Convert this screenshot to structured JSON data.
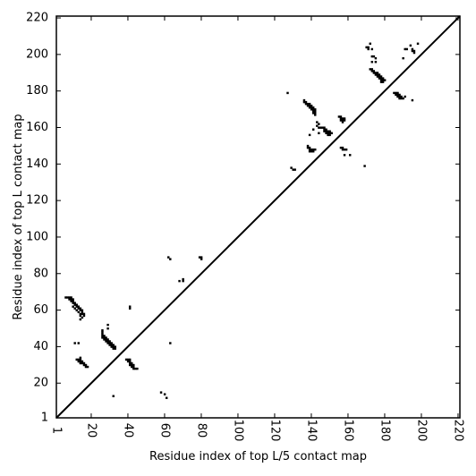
{
  "chart_data": {
    "type": "scatter",
    "title": "",
    "xlabel": "Residue index of top L/5 contact map",
    "ylabel": "Residue index of top L contact map",
    "xlim": [
      1,
      221
    ],
    "ylim": [
      1,
      221
    ],
    "x_ticks": [
      1,
      20,
      40,
      60,
      80,
      100,
      120,
      140,
      160,
      180,
      200,
      220
    ],
    "y_ticks": [
      1,
      20,
      40,
      60,
      80,
      100,
      120,
      140,
      160,
      180,
      200,
      220
    ],
    "x_tick_labels": [
      "1",
      "20",
      "40",
      "60",
      "80",
      "100",
      "120",
      "140",
      "160",
      "180",
      "200",
      "220"
    ],
    "y_tick_labels": [
      "1",
      "20",
      "40",
      "60",
      "80",
      "100",
      "120",
      "140",
      "160",
      "180",
      "200",
      "220"
    ],
    "grid": false,
    "diagonal": {
      "from": [
        1,
        1
      ],
      "to": [
        221,
        221
      ]
    },
    "points": [
      [
        6,
        67
      ],
      [
        7,
        67
      ],
      [
        8,
        67
      ],
      [
        8,
        66
      ],
      [
        9,
        66
      ],
      [
        9,
        65
      ],
      [
        10,
        65
      ],
      [
        10,
        66
      ],
      [
        10,
        64
      ],
      [
        11,
        64
      ],
      [
        11,
        63
      ],
      [
        12,
        63
      ],
      [
        12,
        62
      ],
      [
        13,
        62
      ],
      [
        13,
        61
      ],
      [
        14,
        61
      ],
      [
        14,
        60
      ],
      [
        15,
        60
      ],
      [
        15,
        59
      ],
      [
        15,
        58
      ],
      [
        16,
        58
      ],
      [
        16,
        57
      ],
      [
        15,
        56
      ],
      [
        14,
        57
      ],
      [
        14,
        55
      ],
      [
        9,
        67
      ],
      [
        10,
        62
      ],
      [
        11,
        61
      ],
      [
        12,
        60
      ],
      [
        13,
        59
      ],
      [
        14,
        58
      ],
      [
        11,
        42
      ],
      [
        13,
        42
      ],
      [
        12,
        33
      ],
      [
        13,
        33
      ],
      [
        13,
        32
      ],
      [
        14,
        33
      ],
      [
        14,
        32
      ],
      [
        14,
        31
      ],
      [
        15,
        32
      ],
      [
        15,
        31
      ],
      [
        16,
        31
      ],
      [
        16,
        30
      ],
      [
        17,
        30
      ],
      [
        17,
        29
      ],
      [
        18,
        29
      ],
      [
        14,
        34
      ],
      [
        32,
        13
      ],
      [
        26,
        48
      ],
      [
        26,
        47
      ],
      [
        26,
        46
      ],
      [
        26,
        45
      ],
      [
        27,
        46
      ],
      [
        27,
        45
      ],
      [
        27,
        44
      ],
      [
        28,
        45
      ],
      [
        28,
        44
      ],
      [
        28,
        43
      ],
      [
        29,
        44
      ],
      [
        29,
        43
      ],
      [
        29,
        42
      ],
      [
        30,
        43
      ],
      [
        30,
        42
      ],
      [
        30,
        41
      ],
      [
        31,
        42
      ],
      [
        31,
        41
      ],
      [
        31,
        40
      ],
      [
        32,
        41
      ],
      [
        32,
        40
      ],
      [
        32,
        39
      ],
      [
        33,
        40
      ],
      [
        33,
        39
      ],
      [
        29,
        52
      ],
      [
        29,
        50
      ],
      [
        26,
        49
      ],
      [
        39,
        33
      ],
      [
        40,
        33
      ],
      [
        40,
        32
      ],
      [
        41,
        32
      ],
      [
        41,
        31
      ],
      [
        41,
        30
      ],
      [
        42,
        31
      ],
      [
        42,
        30
      ],
      [
        42,
        29
      ],
      [
        43,
        30
      ],
      [
        43,
        29
      ],
      [
        43,
        28
      ],
      [
        44,
        28
      ],
      [
        45,
        28
      ],
      [
        41,
        33
      ],
      [
        41,
        62
      ],
      [
        41,
        61
      ],
      [
        58,
        15
      ],
      [
        60,
        14
      ],
      [
        61,
        12
      ],
      [
        62,
        89
      ],
      [
        63,
        88
      ],
      [
        63,
        42
      ],
      [
        68,
        76
      ],
      [
        70,
        76
      ],
      [
        70,
        77
      ],
      [
        79,
        89
      ],
      [
        80,
        89
      ],
      [
        80,
        88
      ],
      [
        127,
        179
      ],
      [
        129,
        138
      ],
      [
        130,
        137
      ],
      [
        131,
        137
      ],
      [
        136,
        175
      ],
      [
        136,
        174
      ],
      [
        137,
        174
      ],
      [
        137,
        173
      ],
      [
        138,
        173
      ],
      [
        138,
        172
      ],
      [
        139,
        173
      ],
      [
        139,
        172
      ],
      [
        139,
        171
      ],
      [
        140,
        172
      ],
      [
        140,
        171
      ],
      [
        140,
        170
      ],
      [
        141,
        171
      ],
      [
        141,
        170
      ],
      [
        141,
        169
      ],
      [
        141,
        168
      ],
      [
        142,
        170
      ],
      [
        142,
        169
      ],
      [
        142,
        168
      ],
      [
        142,
        167
      ],
      [
        138,
        150
      ],
      [
        138,
        149
      ],
      [
        139,
        149
      ],
      [
        139,
        148
      ],
      [
        140,
        148
      ],
      [
        140,
        147
      ],
      [
        141,
        148
      ],
      [
        141,
        147
      ],
      [
        142,
        148
      ],
      [
        139,
        147
      ],
      [
        143,
        163
      ],
      [
        143,
        161
      ],
      [
        144,
        162
      ],
      [
        144,
        160
      ],
      [
        145,
        160
      ],
      [
        144,
        157
      ],
      [
        139,
        156
      ],
      [
        141,
        159
      ],
      [
        146,
        160
      ],
      [
        147,
        160
      ],
      [
        147,
        159
      ],
      [
        147,
        158
      ],
      [
        148,
        159
      ],
      [
        148,
        158
      ],
      [
        148,
        157
      ],
      [
        149,
        158
      ],
      [
        149,
        157
      ],
      [
        149,
        156
      ],
      [
        150,
        157
      ],
      [
        150,
        156
      ],
      [
        151,
        157
      ],
      [
        150,
        158
      ],
      [
        155,
        166
      ],
      [
        156,
        166
      ],
      [
        156,
        165
      ],
      [
        156,
        164
      ],
      [
        157,
        165
      ],
      [
        157,
        164
      ],
      [
        157,
        163
      ],
      [
        158,
        165
      ],
      [
        158,
        164
      ],
      [
        156,
        149
      ],
      [
        157,
        149
      ],
      [
        157,
        148
      ],
      [
        158,
        148
      ],
      [
        159,
        148
      ],
      [
        158,
        145
      ],
      [
        161,
        145
      ],
      [
        169,
        139
      ],
      [
        170,
        204
      ],
      [
        171,
        204
      ],
      [
        171,
        203
      ],
      [
        172,
        206
      ],
      [
        173,
        203
      ],
      [
        173,
        199
      ],
      [
        174,
        199
      ],
      [
        173,
        196
      ],
      [
        175,
        198
      ],
      [
        175,
        196
      ],
      [
        172,
        192
      ],
      [
        173,
        192
      ],
      [
        173,
        191
      ],
      [
        174,
        191
      ],
      [
        174,
        190
      ],
      [
        175,
        190
      ],
      [
        175,
        189
      ],
      [
        176,
        190
      ],
      [
        176,
        189
      ],
      [
        176,
        188
      ],
      [
        177,
        189
      ],
      [
        177,
        188
      ],
      [
        177,
        187
      ],
      [
        178,
        188
      ],
      [
        178,
        187
      ],
      [
        178,
        186
      ],
      [
        178,
        185
      ],
      [
        179,
        187
      ],
      [
        179,
        186
      ],
      [
        180,
        186
      ],
      [
        179,
        185
      ],
      [
        185,
        179
      ],
      [
        186,
        179
      ],
      [
        186,
        178
      ],
      [
        187,
        179
      ],
      [
        187,
        178
      ],
      [
        187,
        177
      ],
      [
        188,
        178
      ],
      [
        188,
        177
      ],
      [
        188,
        176
      ],
      [
        189,
        177
      ],
      [
        189,
        176
      ],
      [
        190,
        176
      ],
      [
        191,
        177
      ],
      [
        190,
        198
      ],
      [
        191,
        203
      ],
      [
        192,
        203
      ],
      [
        194,
        205
      ],
      [
        195,
        203
      ],
      [
        195,
        202
      ],
      [
        196,
        202
      ],
      [
        196,
        201
      ],
      [
        198,
        206
      ],
      [
        195,
        175
      ]
    ]
  }
}
